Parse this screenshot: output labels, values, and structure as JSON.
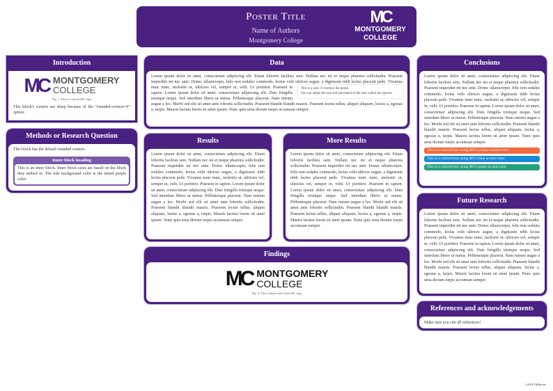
{
  "colors": {
    "purple": "#4a2081",
    "inner_purple": "#7a5aa8",
    "orange": "#f26a3f",
    "blue": "#1a8ad6",
    "green": "#23a07d"
  },
  "header": {
    "title": "Poster Title",
    "authors": "Name of Authors",
    "institution": "Montgomery College",
    "logo": {
      "mark": "MC",
      "line1": "MONTGOMERY",
      "line2": "COLLEGE"
    }
  },
  "lorem": "Lorem ipsum dolor sit amet, consectetuer adipiscing elit. Etiam lobortis facilisis sem. Nullam nec mi et neque pharetra sollicitudin. Praesent imperdiet mi nec ante. Donec ullamcorper, felis non sodales commodo, lectus velit ultrices augue, a dignissim nibh lectus placerat pede. Vivamus nunc nunc, molestie ut, ultricies vel, semper in, velit. Ut porttitor. Praesent in sapien. Lorem ipsum dolor sit amet, consectetuer adipiscing elit. Duis fringilla tristique neque. Sed interdum libero ut metus. Pellentesque placerat. Nam rutrum augue a leo. Morbi sed elit sit amet ante lobortis sollicitudin. Praesent blandit blandit mauris. Praesent lectus tellus, aliquet aliquam, luctus a, egestas a, turpis. Mauris lacinia lorem sit amet ipsum. Nunc quis urna dictum turpis accumsan semper.",
  "introduction": {
    "title": "Introduction",
    "logo": {
      "mark": "MC",
      "line1": "MONTGOMERY",
      "line2": "COLLEGE"
    },
    "caption": "Fig. 1: This is colored MC logo",
    "text": "This block's corners are sharp because of the \"rounded-corners=0\" option."
  },
  "methods": {
    "title": "Methods or Research Question",
    "text": "This block has the default rounded corners.",
    "inner_title": "Inner block heading",
    "inner_text": "This is an inner block. Inner block sizes are based on the block they embed in. The title background color is the tinted purple color."
  },
  "data": {
    "title": "Data",
    "note_line1": "This is a note. It overlays the poster.",
    "note_line2": "You can adjust the size and placement of the note within the options."
  },
  "results": {
    "title": "Results"
  },
  "more_results": {
    "title": "More Results"
  },
  "findings": {
    "title": "Findings",
    "logo": {
      "mark": "MC",
      "line1": "MONTGOMERY",
      "line2": "COLLEGE"
    },
    "caption": "Fig. 2: This is black and white MC logo"
  },
  "conclusions": {
    "title": "Conclusions",
    "boxes": [
      "This is a colored box using MC's orange accent color",
      "This is a colored box using MC's blue accent color",
      "This is a colored box using MC's green accent color"
    ]
  },
  "future": {
    "title": "Future Research"
  },
  "references": {
    "title": "References and acknowledgements",
    "text": "Make sure you cite all references!"
  },
  "footer": "LaTeX TikZposter"
}
